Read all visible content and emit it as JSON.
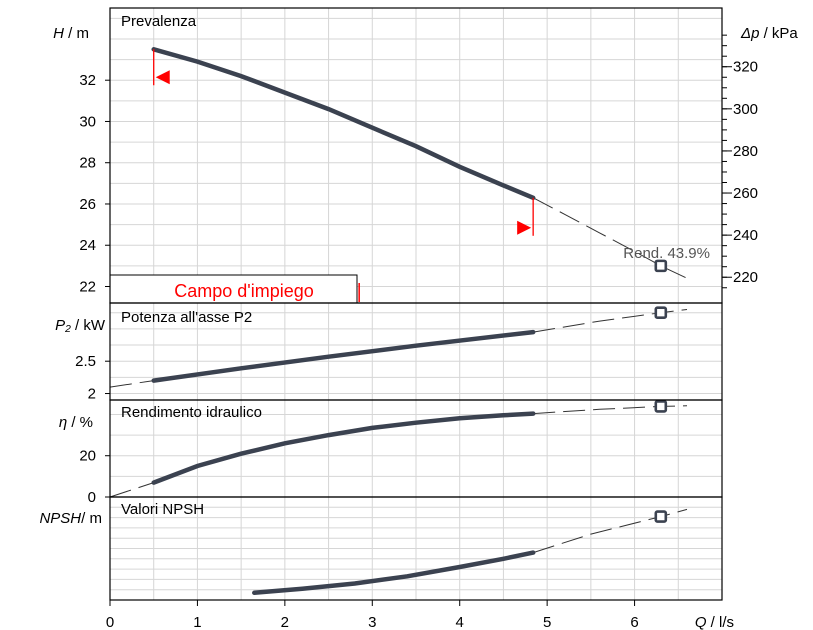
{
  "chart_data": {
    "type": "line",
    "x_axis": {
      "label_symbol": "Q",
      "label_unit": " / l/s",
      "range": [
        0,
        7
      ],
      "ticks": [
        "0",
        "1",
        "2",
        "3",
        "4",
        "5",
        "6"
      ]
    },
    "panels": [
      {
        "id": "head",
        "title": "Prevalenza",
        "y_symbol": "H",
        "y_unit": " / m",
        "y_range": [
          21.2,
          35.5
        ],
        "y_ticks": [
          "22",
          "24",
          "26",
          "28",
          "30",
          "32"
        ],
        "y_tick_values": [
          22,
          24,
          26,
          28,
          30,
          32
        ],
        "right_axis": {
          "symbol": "Δp",
          "unit": " / kPa",
          "ticks": [
            "220",
            "240",
            "260",
            "280",
            "300",
            "320"
          ],
          "tick_values": [
            220,
            240,
            260,
            280,
            300,
            320
          ]
        },
        "solid": [
          [
            0.5,
            33.5
          ],
          [
            1.0,
            32.9
          ],
          [
            1.5,
            32.2
          ],
          [
            2.0,
            31.4
          ],
          [
            2.5,
            30.6
          ],
          [
            3.0,
            29.7
          ],
          [
            3.5,
            28.8
          ],
          [
            4.0,
            27.8
          ],
          [
            4.5,
            26.9
          ],
          [
            4.84,
            26.3
          ]
        ],
        "dashed": [
          [
            4.84,
            26.3
          ],
          [
            5.2,
            25.5
          ],
          [
            5.6,
            24.6
          ],
          [
            6.0,
            23.7
          ],
          [
            6.3,
            23.0
          ],
          [
            6.6,
            22.4
          ]
        ],
        "marker": [
          6.3,
          23.0
        ],
        "annotation": "Rend. 43.9%",
        "range_label": "Campo d'impiego",
        "range_limits": [
          0.5,
          4.84
        ]
      },
      {
        "id": "power",
        "title": "Potenza all'asse P2",
        "y_symbol": "P₂",
        "y_unit": " / kW",
        "y_range": [
          1.9,
          3.4
        ],
        "y_ticks": [
          "2",
          "2.5"
        ],
        "y_tick_values": [
          2.0,
          2.5
        ],
        "solid": [
          [
            0.5,
            2.2
          ],
          [
            1.5,
            2.39
          ],
          [
            2.5,
            2.57
          ],
          [
            3.5,
            2.74
          ],
          [
            4.84,
            2.95
          ]
        ],
        "dashed": [
          [
            0.0,
            2.1
          ],
          [
            0.5,
            2.2
          ]
        ],
        "dashed2": [
          [
            4.84,
            2.95
          ],
          [
            5.6,
            3.12
          ],
          [
            6.3,
            3.25
          ],
          [
            6.6,
            3.3
          ]
        ],
        "marker": [
          6.3,
          3.25
        ]
      },
      {
        "id": "efficiency",
        "title": "Rendimento idraulico",
        "y_symbol": "η",
        "y_unit": " / %",
        "y_range": [
          0,
          47
        ],
        "y_ticks": [
          "0",
          "20"
        ],
        "y_tick_values": [
          0,
          20
        ],
        "solid": [
          [
            0.5,
            7
          ],
          [
            1.0,
            15
          ],
          [
            1.5,
            21
          ],
          [
            2.0,
            26
          ],
          [
            2.5,
            30
          ],
          [
            3.0,
            33.5
          ],
          [
            3.5,
            36
          ],
          [
            4.0,
            38.2
          ],
          [
            4.5,
            39.6
          ],
          [
            4.84,
            40.4
          ]
        ],
        "dashed": [
          [
            0.0,
            0
          ],
          [
            0.5,
            7
          ]
        ],
        "dashed2": [
          [
            4.84,
            40.4
          ],
          [
            5.6,
            42.5
          ],
          [
            6.3,
            43.9
          ],
          [
            6.6,
            44.2
          ]
        ],
        "marker": [
          6.3,
          43.9
        ]
      },
      {
        "id": "npsh",
        "title": "Valori NPSH",
        "y_symbol": "NPSH",
        "y_unit": "/ m",
        "y_range": [
          0,
          10
        ],
        "y_ticks": [],
        "y_tick_values": [],
        "solid": [
          [
            1.65,
            0.7
          ],
          [
            2.2,
            1.1
          ],
          [
            2.8,
            1.6
          ],
          [
            3.4,
            2.3
          ],
          [
            4.0,
            3.2
          ],
          [
            4.5,
            4.0
          ],
          [
            4.84,
            4.6
          ]
        ],
        "dashed2": [
          [
            4.84,
            4.6
          ],
          [
            5.5,
            6.4
          ],
          [
            6.3,
            8.1
          ],
          [
            6.6,
            8.8
          ]
        ],
        "marker": [
          6.3,
          8.1
        ]
      }
    ]
  }
}
